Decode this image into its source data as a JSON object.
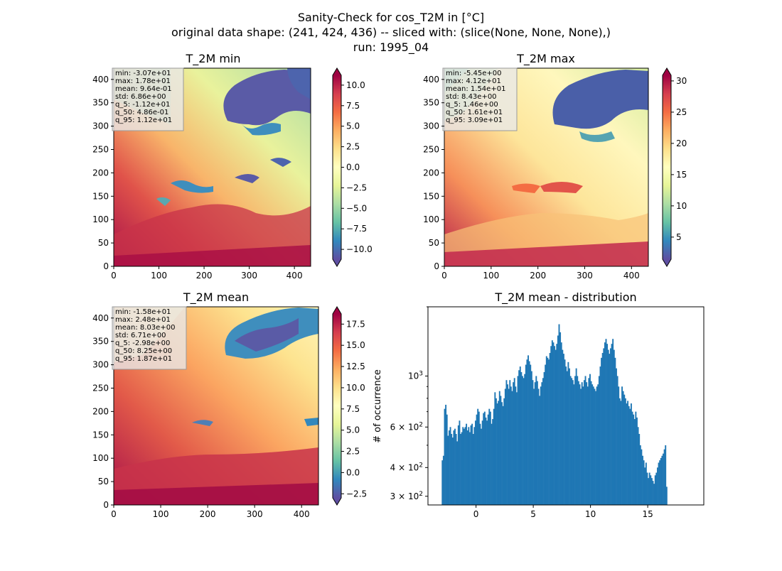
{
  "suptitle": {
    "line1": "Sanity-Check for cos_T2M in [°C]",
    "line2": "original data shape: (241, 424, 436) -- sliced with: (slice(None, None, None),)",
    "line3": "run: 1995_04"
  },
  "maps": [
    {
      "title": "T_2M min",
      "stats": [
        "min: -3.07e+01",
        "max: 1.78e+01",
        "mean: 9.64e-01",
        "std: 6.86e+00",
        "q_5: -1.12e+01",
        "q_50: 4.86e-01",
        "q_95: 1.12e+01"
      ],
      "xticks": [
        "0",
        "100",
        "200",
        "300",
        "400"
      ],
      "yticks": [
        "0",
        "50",
        "100",
        "150",
        "200",
        "250",
        "300",
        "350",
        "400"
      ],
      "colorbar": {
        "ticks": [
          "−10.0",
          "−7.5",
          "−5.0",
          "−2.5",
          "0.0",
          "2.5",
          "5.0",
          "7.5",
          "10.0"
        ],
        "tick_values": [
          -10,
          -7.5,
          -5,
          -2.5,
          0,
          2.5,
          5,
          7.5,
          10
        ],
        "vmin": -11.2,
        "vmax": 11.2
      },
      "cmap": "Spectral_r"
    },
    {
      "title": "T_2M max",
      "stats": [
        "min: -5.45e+00",
        "max: 4.12e+01",
        "mean: 1.54e+01",
        "std: 8.43e+00",
        "q_5: 1.46e+00",
        "q_50: 1.61e+01",
        "q_95: 3.09e+01"
      ],
      "xticks": [
        "0",
        "100",
        "200",
        "300",
        "400"
      ],
      "yticks": [
        "0",
        "50",
        "100",
        "150",
        "200",
        "250",
        "300",
        "350",
        "400"
      ],
      "colorbar": {
        "ticks": [
          "5",
          "10",
          "15",
          "20",
          "25",
          "30"
        ],
        "tick_values": [
          5,
          10,
          15,
          20,
          25,
          30
        ],
        "vmin": 1.46,
        "vmax": 30.9
      },
      "cmap": "Spectral_r"
    },
    {
      "title": "T_2M mean",
      "stats": [
        "min: -1.58e+01",
        "max: 2.48e+01",
        "mean: 8.03e+00",
        "std: 6.71e+00",
        "q_5: -2.98e+00",
        "q_50: 8.25e+00",
        "q_95: 1.87e+01"
      ],
      "xticks": [
        "0",
        "100",
        "200",
        "300",
        "400"
      ],
      "yticks": [
        "0",
        "50",
        "100",
        "150",
        "200",
        "250",
        "300",
        "350",
        "400"
      ],
      "colorbar": {
        "ticks": [
          "−2.5",
          "0.0",
          "2.5",
          "5.0",
          "7.5",
          "10.0",
          "12.5",
          "15.0",
          "17.5"
        ],
        "tick_values": [
          -2.5,
          0,
          2.5,
          5,
          7.5,
          10,
          12.5,
          15,
          17.5
        ],
        "vmin": -2.98,
        "vmax": 18.7
      },
      "cmap": "Spectral_r"
    }
  ],
  "colors": {
    "histogram_bar": "#1f77b4",
    "stats_box": "#e8e8e8"
  },
  "chart_data": [
    {
      "type": "heatmap",
      "title": "T_2M min",
      "xlim": [
        0,
        436
      ],
      "ylim": [
        0,
        424
      ]
    },
    {
      "type": "heatmap",
      "title": "T_2M max",
      "xlim": [
        0,
        436
      ],
      "ylim": [
        0,
        424
      ]
    },
    {
      "type": "heatmap",
      "title": "T_2M mean",
      "xlim": [
        0,
        436
      ],
      "ylim": [
        0,
        424
      ]
    },
    {
      "type": "bar",
      "title": "T_2M mean - distribution",
      "ylabel": "# of occurrence",
      "yscale": "log",
      "xlim": [
        -4.2,
        19.9
      ],
      "ylim": [
        275,
        2000
      ],
      "xticks": [
        "0",
        "5",
        "10",
        "15"
      ],
      "yticks": [
        "3 × 10²",
        "4 × 10²",
        "6 × 10²",
        "10³"
      ],
      "bin_start": -3.0,
      "bin_width": 0.1,
      "values": [
        430,
        450,
        720,
        750,
        680,
        550,
        580,
        600,
        560,
        540,
        580,
        590,
        560,
        520,
        610,
        640,
        560,
        570,
        600,
        590,
        600,
        620,
        580,
        600,
        570,
        610,
        620,
        560,
        600,
        640,
        680,
        720,
        700,
        620,
        590,
        640,
        690,
        700,
        660,
        640,
        680,
        720,
        700,
        620,
        650,
        720,
        850,
        800,
        760,
        780,
        860,
        820,
        770,
        740,
        800,
        880,
        960,
        920,
        880,
        960,
        900,
        860,
        940,
        980,
        900,
        850,
        1000,
        1060,
        1100,
        1040,
        1000,
        980,
        1020,
        1120,
        1180,
        1230,
        1160,
        1120,
        1050,
        960,
        880,
        940,
        1000,
        950,
        880,
        820,
        900,
        940,
        980,
        1040,
        1120,
        1220,
        1200,
        1180,
        1260,
        1350,
        1430,
        1400,
        1350,
        1300,
        1380,
        1500,
        1680,
        1550,
        1400,
        1300,
        1250,
        1180,
        1100,
        1050,
        1150,
        1080,
        1000,
        980,
        960,
        920,
        1000,
        1080,
        1000,
        950,
        920,
        880,
        940,
        900,
        960,
        1000,
        940,
        900,
        980,
        1020,
        950,
        920,
        900,
        880,
        860,
        900,
        920,
        1000,
        1100,
        1200,
        1260,
        1320,
        1400,
        1450,
        1380,
        1300,
        1250,
        1320,
        1380,
        1450,
        1300,
        1200,
        1080,
        1000,
        900,
        800,
        780,
        900,
        860,
        830,
        800,
        760,
        780,
        740,
        720,
        760,
        700,
        680,
        650,
        700,
        660,
        600,
        560,
        500,
        480,
        450,
        430,
        400,
        420,
        380,
        360,
        380,
        370,
        360,
        350,
        340,
        370,
        380,
        400,
        420,
        430,
        440,
        450,
        460,
        480,
        500,
        330
      ]
    }
  ]
}
